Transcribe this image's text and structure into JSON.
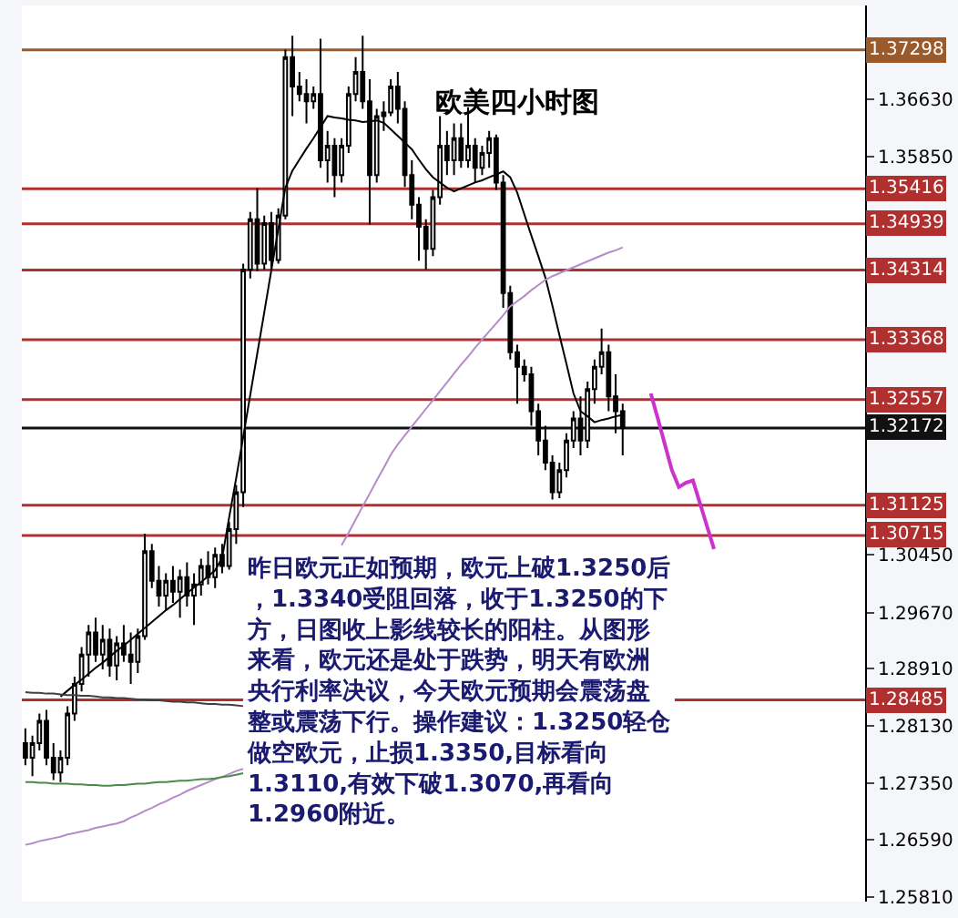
{
  "chart_data": {
    "type": "candlestick",
    "title": "欧美四小时图",
    "categories": [
      null,
      null,
      null,
      null,
      null,
      null,
      null,
      null,
      null,
      null,
      null,
      null,
      null,
      null,
      null,
      null,
      null,
      null,
      null,
      null,
      null,
      null,
      null,
      null,
      null,
      null,
      null,
      null,
      null,
      null,
      null,
      null,
      null,
      null,
      null,
      null,
      null,
      null,
      null,
      null,
      null,
      null,
      null,
      null,
      null,
      null,
      null,
      null,
      null,
      null,
      null,
      null,
      null,
      null,
      null,
      null,
      null,
      null,
      null,
      null,
      null,
      null,
      null,
      null,
      null,
      null,
      null,
      null,
      null,
      null,
      null,
      null,
      null,
      null,
      null,
      null,
      null,
      null,
      null,
      null,
      null,
      null,
      null,
      null,
      null,
      null,
      null,
      null,
      null,
      null,
      null,
      null,
      null,
      null,
      null,
      null,
      null,
      null,
      null,
      null,
      null,
      null,
      null,
      null,
      null,
      null,
      null,
      null,
      null,
      null,
      null,
      null,
      null,
      null,
      null,
      null,
      null,
      null,
      null,
      null
    ],
    "ohlc": [
      [
        1.279,
        1.281,
        1.276,
        1.277
      ],
      [
        1.277,
        1.28,
        1.2745,
        1.279
      ],
      [
        1.279,
        1.283,
        1.278,
        1.282
      ],
      [
        1.282,
        1.2835,
        1.276,
        1.277
      ],
      [
        1.277,
        1.279,
        1.274,
        1.275
      ],
      [
        1.275,
        1.278,
        1.2737,
        1.277
      ],
      [
        1.277,
        1.284,
        1.276,
        1.283
      ],
      [
        1.283,
        1.288,
        1.282,
        1.287
      ],
      [
        1.287,
        1.292,
        1.286,
        1.291
      ],
      [
        1.291,
        1.295,
        1.288,
        1.294
      ],
      [
        1.294,
        1.296,
        1.29,
        1.291
      ],
      [
        1.291,
        1.295,
        1.289,
        1.293
      ],
      [
        1.293,
        1.2945,
        1.288,
        1.2895
      ],
      [
        1.2895,
        1.2935,
        1.2875,
        1.2925
      ],
      [
        1.2925,
        1.295,
        1.29,
        1.291
      ],
      [
        1.291,
        1.294,
        1.287,
        1.29
      ],
      [
        1.29,
        1.2945,
        1.2885,
        1.2935
      ],
      [
        1.2935,
        1.3074,
        1.293,
        1.305
      ],
      [
        1.305,
        1.306,
        1.3,
        1.301
      ],
      [
        1.301,
        1.303,
        1.2975,
        1.299
      ],
      [
        1.299,
        1.302,
        1.297,
        1.301
      ],
      [
        1.301,
        1.303,
        1.298,
        1.2995
      ],
      [
        1.2995,
        1.3025,
        1.296,
        1.3015
      ],
      [
        1.3015,
        1.3035,
        1.2975,
        1.299
      ],
      [
        1.299,
        1.302,
        1.295,
        1.3005
      ],
      [
        1.3005,
        1.304,
        1.299,
        1.303
      ],
      [
        1.303,
        1.305,
        1.3005,
        1.3015
      ],
      [
        1.3015,
        1.3055,
        1.3,
        1.3045
      ],
      [
        1.3045,
        1.306,
        1.302,
        1.303
      ],
      [
        1.303,
        1.309,
        1.3025,
        1.308
      ],
      [
        1.308,
        1.314,
        1.306,
        1.313
      ],
      [
        1.313,
        1.344,
        1.311,
        1.3432
      ],
      [
        1.3432,
        1.351,
        1.342,
        1.35
      ],
      [
        1.35,
        1.3542,
        1.343,
        1.344
      ],
      [
        1.344,
        1.3505,
        1.3432,
        1.3495
      ],
      [
        1.3495,
        1.351,
        1.343,
        1.3445
      ],
      [
        1.3445,
        1.3515,
        1.344,
        1.3505
      ],
      [
        1.3505,
        1.373,
        1.35,
        1.372
      ],
      [
        1.372,
        1.3749,
        1.364,
        1.368
      ],
      [
        1.368,
        1.37,
        1.366,
        1.367
      ],
      [
        1.367,
        1.369,
        1.363,
        1.366
      ],
      [
        1.366,
        1.368,
        1.365,
        1.367
      ],
      [
        1.367,
        1.3745,
        1.357,
        1.358
      ],
      [
        1.358,
        1.362,
        1.355,
        1.36
      ],
      [
        1.36,
        1.361,
        1.353,
        1.356
      ],
      [
        1.356,
        1.361,
        1.355,
        1.36
      ],
      [
        1.36,
        1.368,
        1.359,
        1.367
      ],
      [
        1.367,
        1.372,
        1.366,
        1.37
      ],
      [
        1.37,
        1.3749,
        1.365,
        1.366
      ],
      [
        1.366,
        1.369,
        1.3493,
        1.356
      ],
      [
        1.356,
        1.365,
        1.355,
        1.364
      ],
      [
        1.364,
        1.366,
        1.362,
        1.3645
      ],
      [
        1.3645,
        1.369,
        1.364,
        1.368
      ],
      [
        1.368,
        1.37,
        1.363,
        1.365
      ],
      [
        1.365,
        1.366,
        1.3544,
        1.356
      ],
      [
        1.356,
        1.358,
        1.35,
        1.352
      ],
      [
        1.352,
        1.353,
        1.3444,
        1.349
      ],
      [
        1.349,
        1.35,
        1.3432,
        1.346
      ],
      [
        1.346,
        1.354,
        1.345,
        1.353
      ],
      [
        1.353,
        1.364,
        1.352,
        1.36
      ],
      [
        1.36,
        1.362,
        1.356,
        1.358
      ],
      [
        1.358,
        1.363,
        1.356,
        1.361
      ],
      [
        1.361,
        1.363,
        1.357,
        1.358
      ],
      [
        1.358,
        1.3652,
        1.357,
        1.36
      ],
      [
        1.36,
        1.361,
        1.355,
        1.357
      ],
      [
        1.357,
        1.36,
        1.356,
        1.359
      ],
      [
        1.359,
        1.362,
        1.357,
        1.361
      ],
      [
        1.361,
        1.3615,
        1.354,
        1.355
      ],
      [
        1.355,
        1.356,
        1.338,
        1.34
      ],
      [
        1.34,
        1.341,
        1.331,
        1.332
      ],
      [
        1.332,
        1.333,
        1.325,
        1.33
      ],
      [
        1.33,
        1.331,
        1.328,
        1.329
      ],
      [
        1.329,
        1.33,
        1.322,
        1.324
      ],
      [
        1.324,
        1.325,
        1.318,
        1.32
      ],
      [
        1.32,
        1.322,
        1.316,
        1.317
      ],
      [
        1.317,
        1.318,
        1.312,
        1.313
      ],
      [
        1.313,
        1.317,
        1.3122,
        1.316
      ],
      [
        1.316,
        1.321,
        1.315,
        1.32
      ],
      [
        1.32,
        1.324,
        1.319,
        1.323
      ],
      [
        1.323,
        1.326,
        1.318,
        1.32
      ],
      [
        1.32,
        1.328,
        1.319,
        1.327
      ],
      [
        1.327,
        1.331,
        1.325,
        1.33
      ],
      [
        1.33,
        1.3352,
        1.329,
        1.332
      ],
      [
        1.332,
        1.333,
        1.324,
        1.326
      ],
      [
        1.326,
        1.329,
        1.321,
        1.324
      ],
      [
        1.324,
        1.325,
        1.318,
        1.3217
      ],
      null,
      null,
      null,
      null,
      null,
      null,
      null,
      null,
      null,
      null,
      null,
      null,
      null,
      null,
      null,
      null,
      null,
      null,
      null,
      null,
      null,
      null,
      null,
      null,
      null,
      null,
      null,
      null,
      null,
      null,
      null,
      null,
      null,
      null
    ],
    "series": [
      {
        "type": "line",
        "color": "#000000",
        "values": [
          null,
          null,
          null,
          null,
          null,
          1.2853,
          1.2861,
          1.2869,
          1.2876,
          1.2884,
          1.2892,
          1.2899,
          1.2907,
          1.2915,
          1.2922,
          1.293,
          1.2938,
          1.2946,
          1.2954,
          1.2962,
          1.297,
          1.2977,
          1.2985,
          1.2993,
          1.3001,
          1.3008,
          1.3016,
          1.3024,
          1.3041,
          1.3096,
          1.3149,
          1.3205,
          1.3262,
          1.3318,
          1.3374,
          1.3431,
          1.3487,
          1.3543,
          1.3566,
          1.3581,
          1.3596,
          1.361,
          1.3625,
          1.364,
          1.3638,
          1.3637,
          1.3635,
          1.3634,
          1.3632,
          1.3633,
          1.3634,
          1.3631,
          1.3622,
          1.3613,
          1.3604,
          1.3595,
          1.3581,
          1.3568,
          1.3557,
          1.355,
          1.3543,
          1.3538,
          1.3542,
          1.3546,
          1.355,
          1.3553,
          1.3557,
          1.3561,
          1.3565,
          1.3557,
          1.3536,
          1.3507,
          1.3478,
          1.345,
          1.3421,
          1.3383,
          1.3343,
          1.3304,
          1.3264,
          1.324,
          1.3233,
          1.3225,
          1.3228,
          1.323,
          1.3233,
          1.3235,
          null,
          null,
          null,
          null,
          null,
          null,
          null,
          null,
          null,
          null,
          null,
          null,
          null,
          null,
          null,
          null,
          null,
          null,
          null,
          null,
          null,
          null,
          null,
          null,
          null,
          null,
          null,
          null,
          null,
          null,
          null,
          null,
          null,
          null
        ]
      },
      {
        "type": "line",
        "color": "#b48cc8",
        "values": [
          1.2652,
          1.2654,
          1.2657,
          1.2659,
          1.2661,
          1.2663,
          1.2666,
          1.2668,
          1.267,
          1.2672,
          1.2675,
          1.2677,
          1.2679,
          1.2681,
          1.2684,
          1.2689,
          1.2693,
          1.2698,
          1.2702,
          1.2707,
          1.2711,
          1.2716,
          1.272,
          1.2725,
          1.2729,
          1.2733,
          1.2737,
          1.2741,
          1.2744,
          1.2748,
          1.2752,
          1.2755,
          null,
          null,
          null,
          null,
          null,
          null,
          null,
          null,
          null,
          null,
          null,
          null,
          null,
          1.3058,
          1.3075,
          1.3093,
          1.3111,
          1.3128,
          1.3146,
          1.3163,
          1.3181,
          1.3195,
          1.3207,
          1.3219,
          1.3231,
          1.3243,
          1.3255,
          1.3267,
          1.3279,
          1.3291,
          1.3303,
          1.3314,
          1.3326,
          1.3337,
          1.3348,
          1.3359,
          1.337,
          1.3382,
          1.3389,
          1.3396,
          1.3404,
          1.3411,
          1.3418,
          1.3423,
          1.3427,
          1.3431,
          1.3435,
          1.3439,
          1.3443,
          1.3447,
          1.3451,
          1.3455,
          1.3458,
          1.3462,
          null,
          null,
          null,
          null,
          null,
          null,
          null,
          null,
          null,
          null,
          null,
          null,
          null,
          null,
          null,
          null,
          null,
          null,
          null,
          null,
          null,
          null,
          null,
          null,
          null,
          null,
          null,
          null,
          null,
          null,
          null,
          null,
          null,
          null
        ]
      },
      {
        "type": "line",
        "color": "#404040",
        "values": [
          1.2859,
          1.2858,
          1.2858,
          1.2857,
          1.2857,
          1.2856,
          1.2855,
          1.2855,
          1.2854,
          1.2854,
          1.2853,
          1.2852,
          1.2852,
          1.2851,
          1.2851,
          1.285,
          1.2849,
          1.2849,
          1.2848,
          1.2848,
          1.2847,
          1.2846,
          1.2846,
          1.2845,
          1.2845,
          1.2844,
          1.2843,
          1.2843,
          1.2842,
          1.2842,
          1.2841,
          1.284,
          null,
          null,
          null,
          null,
          null,
          null,
          null,
          null,
          null,
          null,
          null,
          null,
          null,
          null,
          null,
          null,
          null,
          null,
          null,
          null,
          null,
          null,
          null,
          null,
          null,
          null,
          null,
          null,
          null,
          null,
          null,
          null,
          null,
          null,
          null,
          null,
          null,
          null,
          null,
          null,
          null,
          null,
          null,
          null,
          null,
          null,
          null,
          null,
          null,
          null,
          null,
          null,
          null,
          null,
          null,
          null,
          null,
          null,
          null,
          null,
          null,
          null,
          null,
          null,
          null,
          null,
          null,
          null,
          null,
          null,
          null,
          null,
          null,
          null,
          null,
          null,
          null,
          null,
          null,
          null,
          null,
          null,
          null,
          null,
          null,
          null,
          null,
          null
        ]
      },
      {
        "type": "line",
        "color": "#4a8a4a",
        "values": [
          1.2737,
          1.2737,
          1.2736,
          1.2736,
          1.2735,
          1.2735,
          1.2735,
          1.2734,
          1.2734,
          1.2733,
          1.2733,
          1.2732,
          1.2732,
          1.2733,
          1.2733,
          1.2734,
          1.2735,
          1.2735,
          1.2736,
          1.2737,
          1.2737,
          1.2738,
          1.2739,
          1.2739,
          1.274,
          1.2741,
          1.2741,
          1.2742,
          1.2744,
          1.2745,
          1.2747,
          1.2749,
          null,
          null,
          null,
          null,
          null,
          null,
          null,
          null,
          null,
          null,
          null,
          null,
          null,
          null,
          null,
          null,
          null,
          null,
          null,
          null,
          null,
          null,
          null,
          null,
          null,
          null,
          null,
          null,
          null,
          null,
          null,
          null,
          null,
          null,
          null,
          null,
          null,
          null,
          null,
          null,
          null,
          null,
          null,
          null,
          null,
          null,
          null,
          null,
          null,
          null,
          null,
          null,
          null,
          null,
          null,
          null,
          null,
          null,
          null,
          null,
          null,
          null,
          null,
          null,
          null,
          null,
          null,
          null,
          null,
          null,
          null,
          null,
          null,
          null,
          null,
          null,
          null,
          null,
          null,
          null,
          null,
          null,
          null,
          null,
          null,
          null,
          null,
          null
        ]
      },
      {
        "type": "line",
        "color": "#cc33cc",
        "values": [
          null,
          null,
          null,
          null,
          null,
          null,
          null,
          null,
          null,
          null,
          null,
          null,
          null,
          null,
          null,
          null,
          null,
          null,
          null,
          null,
          null,
          null,
          null,
          null,
          null,
          null,
          null,
          null,
          null,
          null,
          null,
          null,
          null,
          null,
          null,
          null,
          null,
          null,
          null,
          null,
          null,
          null,
          null,
          null,
          null,
          null,
          null,
          null,
          null,
          null,
          null,
          null,
          null,
          null,
          null,
          null,
          null,
          null,
          null,
          null,
          null,
          null,
          null,
          null,
          null,
          null,
          null,
          null,
          null,
          null,
          null,
          null,
          null,
          null,
          null,
          null,
          null,
          null,
          null,
          null,
          null,
          null,
          null,
          null,
          null,
          null,
          null,
          null,
          null,
          1.3264,
          1.323,
          1.3195,
          1.316,
          1.3137,
          1.3143,
          1.3146,
          1.3115,
          1.3084,
          1.3053,
          null,
          null,
          null,
          null,
          null,
          null,
          null,
          null,
          null,
          null,
          null,
          null,
          null,
          null,
          null,
          null,
          null,
          null,
          null,
          null,
          null
        ]
      }
    ],
    "ylim": [
      1.2575,
      1.379
    ],
    "yticks": [
      {
        "value": 1.3663,
        "label": "1.36630"
      },
      {
        "value": 1.3585,
        "label": "1.35850"
      },
      {
        "value": 1.3045,
        "label": "1.30450"
      },
      {
        "value": 1.2967,
        "label": "1.29670"
      },
      {
        "value": 1.2891,
        "label": "1.28910"
      },
      {
        "value": 1.2813,
        "label": "1.28130"
      },
      {
        "value": 1.2735,
        "label": "1.27350"
      },
      {
        "value": 1.2659,
        "label": "1.26590"
      },
      {
        "value": 1.2581,
        "label": "1.25810"
      }
    ],
    "tick_labels": "y",
    "ref_lines": [
      {
        "axis": "y",
        "value": 1.37298,
        "label": "1.37298",
        "color": "#9a5a2a"
      },
      {
        "axis": "y",
        "value": 1.35416,
        "label": "1.35416",
        "color": "#b03030"
      },
      {
        "axis": "y",
        "value": 1.34939,
        "label": "1.34939",
        "color": "#b03030"
      },
      {
        "axis": "y",
        "value": 1.34314,
        "label": "1.34314",
        "color": "#b03030"
      },
      {
        "axis": "y",
        "value": 1.33368,
        "label": "1.33368",
        "color": "#b03030"
      },
      {
        "axis": "y",
        "value": 1.32557,
        "label": "1.32557",
        "color": "#b03030"
      },
      {
        "axis": "y",
        "value": 1.32172,
        "label": "1.32172",
        "color": "#111111"
      },
      {
        "axis": "y",
        "value": 1.31125,
        "label": "1.31125",
        "color": "#b03030"
      },
      {
        "axis": "y",
        "value": 1.30715,
        "label": "1.30715",
        "color": "#b03030"
      },
      {
        "axis": "y",
        "value": 1.28485,
        "label": "1.28485",
        "color": "#b03030"
      }
    ],
    "annotations": [
      "昨日欧元正如预期，欧元上破1.3250后，1.3340受阻回落，收于1.3250的下方，日图收上影线较长的阳柱。从图形来看，欧元还是处于跌势，明天有欧洲央行利率决议，今天欧元预期会震荡盘整或震荡下行。操作建议：1.3250轻仓做空欧元，止损1.3350,目标看向1.3110,有效下破1.3070,再看向1.2960附近。"
    ]
  }
}
